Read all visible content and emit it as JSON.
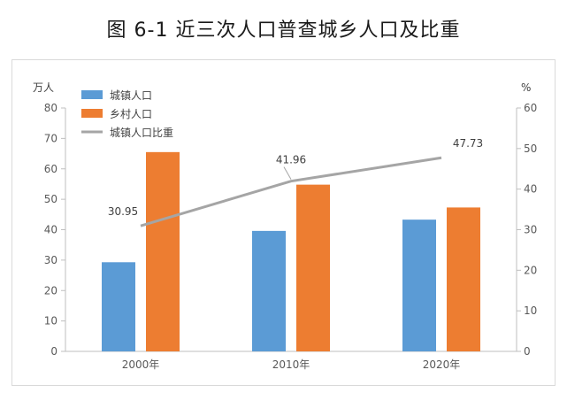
{
  "figure_title": "图 6-1    近三次人口普查城乡人口及比重",
  "chart_data": {
    "type": "bar",
    "title": "图 6-1    近三次人口普查城乡人口及比重",
    "categories": [
      "2000年",
      "2010年",
      "2020年"
    ],
    "y_left": {
      "unit": "万人",
      "ticks": [
        "0",
        "10",
        "20",
        "30",
        "40",
        "50",
        "60",
        "70",
        "80"
      ],
      "range": [
        0,
        80
      ]
    },
    "y_right": {
      "unit": "%",
      "ticks": [
        "0",
        "10",
        "20",
        "30",
        "40",
        "50",
        "60"
      ],
      "range": [
        0,
        60
      ]
    },
    "series": [
      {
        "name": "城镇人口",
        "kind": "bar",
        "axis": "left",
        "color": "#5b9bd5",
        "values": [
          29.3,
          39.6,
          43.3
        ]
      },
      {
        "name": "乡村人口",
        "kind": "bar",
        "axis": "left",
        "color": "#ed7d31",
        "values": [
          65.5,
          54.8,
          47.3
        ]
      },
      {
        "name": "城镇人口比重",
        "kind": "line",
        "axis": "right",
        "color": "#a5a5a5",
        "values": [
          30.95,
          41.96,
          47.73
        ],
        "labels": [
          "30.95",
          "41.96",
          "47.73"
        ]
      }
    ],
    "legend": "top-left",
    "grid": false
  }
}
